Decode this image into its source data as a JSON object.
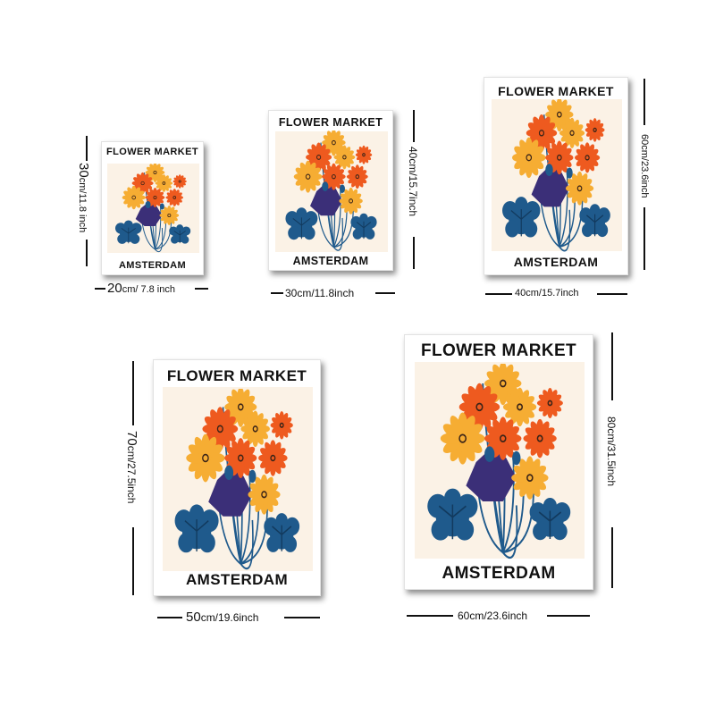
{
  "poster": {
    "title": "FLOWER MARKET",
    "city": "AMSTERDAM"
  },
  "sizes": [
    {
      "width_num": "20",
      "width_unit": "cm/ 7.8 inch",
      "height_num": "30",
      "height_unit": "cm/11.8 inch"
    },
    {
      "width_label": "30cm/11.8inch",
      "height_label": "40cm/15.7inch"
    },
    {
      "width_label": "40cm/15.7inch",
      "height_label": "60cm/23.6inch"
    },
    {
      "width_num": "50",
      "width_unit": "cm/19.6inch",
      "height_num": "70",
      "height_unit": "cm/27.5inch"
    },
    {
      "width_label": "60cm/23.6inch",
      "height_label": "80cm/31.5inch"
    }
  ],
  "colors": {
    "navy": "#1f5a8c",
    "purple": "#3b2f78",
    "orange": "#ee5a1f",
    "yellow": "#f6ad33",
    "background": "#fbf2e6"
  }
}
